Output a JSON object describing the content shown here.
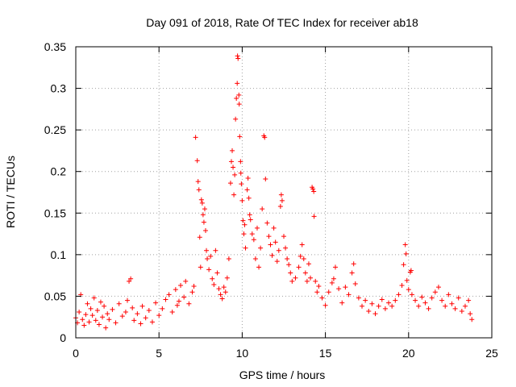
{
  "chart_data": {
    "type": "scatter",
    "title": "Day 091 of 2018, Rate Of TEC Index for receiver ab18",
    "xlabel": "GPS time / hours",
    "ylabel": "ROTI / TECUs",
    "xlim": [
      0,
      25
    ],
    "ylim": [
      0,
      0.35
    ],
    "x_ticks": [
      0,
      5,
      10,
      15,
      20,
      25
    ],
    "x_tick_labels": [
      "0",
      "5",
      "10",
      "15",
      "20",
      "25"
    ],
    "y_ticks": [
      0,
      0.05,
      0.1,
      0.15,
      0.2,
      0.25,
      0.3,
      0.35
    ],
    "y_tick_labels": [
      "0",
      "0.05",
      "0.1",
      "0.15",
      "0.2",
      "0.25",
      "0.3",
      "0.35"
    ],
    "grid": true,
    "marker": "+",
    "color": "#ff0000",
    "series": [
      {
        "name": "ROTI",
        "points": [
          [
            0.0,
            0.024
          ],
          [
            0.1,
            0.018
          ],
          [
            0.2,
            0.031
          ],
          [
            0.3,
            0.052
          ],
          [
            0.4,
            0.022
          ],
          [
            0.5,
            0.015
          ],
          [
            0.6,
            0.028
          ],
          [
            0.7,
            0.041
          ],
          [
            0.8,
            0.019
          ],
          [
            0.9,
            0.035
          ],
          [
            1.0,
            0.027
          ],
          [
            1.1,
            0.048
          ],
          [
            1.2,
            0.021
          ],
          [
            1.3,
            0.033
          ],
          [
            1.4,
            0.016
          ],
          [
            1.5,
            0.043
          ],
          [
            1.6,
            0.025
          ],
          [
            1.7,
            0.038
          ],
          [
            1.8,
            0.012
          ],
          [
            1.9,
            0.029
          ],
          [
            2.0,
            0.022
          ],
          [
            2.2,
            0.034
          ],
          [
            2.4,
            0.018
          ],
          [
            2.6,
            0.041
          ],
          [
            2.8,
            0.026
          ],
          [
            3.0,
            0.031
          ],
          [
            3.1,
            0.045
          ],
          [
            3.2,
            0.068
          ],
          [
            3.3,
            0.071
          ],
          [
            3.4,
            0.036
          ],
          [
            3.5,
            0.021
          ],
          [
            3.7,
            0.029
          ],
          [
            3.9,
            0.017
          ],
          [
            4.0,
            0.038
          ],
          [
            4.2,
            0.024
          ],
          [
            4.4,
            0.033
          ],
          [
            4.6,
            0.019
          ],
          [
            4.8,
            0.042
          ],
          [
            5.0,
            0.027
          ],
          [
            5.2,
            0.035
          ],
          [
            5.4,
            0.046
          ],
          [
            5.6,
            0.052
          ],
          [
            5.8,
            0.031
          ],
          [
            6.0,
            0.058
          ],
          [
            6.1,
            0.039
          ],
          [
            6.2,
            0.044
          ],
          [
            6.3,
            0.063
          ],
          [
            6.5,
            0.049
          ],
          [
            6.6,
            0.068
          ],
          [
            6.8,
            0.041
          ],
          [
            7.0,
            0.055
          ],
          [
            7.1,
            0.062
          ],
          [
            7.2,
            0.241
          ],
          [
            7.3,
            0.213
          ],
          [
            7.35,
            0.188
          ],
          [
            7.4,
            0.178
          ],
          [
            7.45,
            0.121
          ],
          [
            7.5,
            0.085
          ],
          [
            7.55,
            0.166
          ],
          [
            7.6,
            0.162
          ],
          [
            7.65,
            0.148
          ],
          [
            7.7,
            0.139
          ],
          [
            7.75,
            0.155
          ],
          [
            7.8,
            0.129
          ],
          [
            7.85,
            0.105
          ],
          [
            7.9,
            0.095
          ],
          [
            8.0,
            0.082
          ],
          [
            8.1,
            0.098
          ],
          [
            8.2,
            0.071
          ],
          [
            8.3,
            0.064
          ],
          [
            8.4,
            0.105
          ],
          [
            8.5,
            0.078
          ],
          [
            8.6,
            0.059
          ],
          [
            8.7,
            0.052
          ],
          [
            8.8,
            0.047
          ],
          [
            8.9,
            0.061
          ],
          [
            9.0,
            0.055
          ],
          [
            9.1,
            0.072
          ],
          [
            9.2,
            0.095
          ],
          [
            9.3,
            0.186
          ],
          [
            9.35,
            0.212
          ],
          [
            9.4,
            0.225
          ],
          [
            9.45,
            0.205
          ],
          [
            9.5,
            0.172
          ],
          [
            9.55,
            0.196
          ],
          [
            9.6,
            0.263
          ],
          [
            9.65,
            0.288
          ],
          [
            9.7,
            0.306
          ],
          [
            9.72,
            0.339
          ],
          [
            9.75,
            0.336
          ],
          [
            9.8,
            0.292
          ],
          [
            9.82,
            0.281
          ],
          [
            9.85,
            0.242
          ],
          [
            9.9,
            0.212
          ],
          [
            9.92,
            0.198
          ],
          [
            9.95,
            0.185
          ],
          [
            10.0,
            0.165
          ],
          [
            10.05,
            0.141
          ],
          [
            10.1,
            0.125
          ],
          [
            10.15,
            0.136
          ],
          [
            10.2,
            0.108
          ],
          [
            10.3,
            0.178
          ],
          [
            10.35,
            0.192
          ],
          [
            10.4,
            0.168
          ],
          [
            10.45,
            0.148
          ],
          [
            10.5,
            0.142
          ],
          [
            10.6,
            0.125
          ],
          [
            10.7,
            0.118
          ],
          [
            10.8,
            0.095
          ],
          [
            10.9,
            0.132
          ],
          [
            11.0,
            0.085
          ],
          [
            11.1,
            0.108
          ],
          [
            11.2,
            0.155
          ],
          [
            11.3,
            0.243
          ],
          [
            11.35,
            0.241
          ],
          [
            11.4,
            0.191
          ],
          [
            11.5,
            0.138
          ],
          [
            11.6,
            0.122
          ],
          [
            11.7,
            0.112
          ],
          [
            11.8,
            0.099
          ],
          [
            11.9,
            0.132
          ],
          [
            12.0,
            0.115
          ],
          [
            12.1,
            0.092
          ],
          [
            12.2,
            0.105
          ],
          [
            12.3,
            0.158
          ],
          [
            12.35,
            0.172
          ],
          [
            12.4,
            0.165
          ],
          [
            12.5,
            0.122
          ],
          [
            12.6,
            0.108
          ],
          [
            12.7,
            0.095
          ],
          [
            12.8,
            0.088
          ],
          [
            12.9,
            0.078
          ],
          [
            13.0,
            0.068
          ],
          [
            13.2,
            0.072
          ],
          [
            13.4,
            0.085
          ],
          [
            13.5,
            0.098
          ],
          [
            13.6,
            0.112
          ],
          [
            13.7,
            0.095
          ],
          [
            13.8,
            0.078
          ],
          [
            13.9,
            0.068
          ],
          [
            14.0,
            0.089
          ],
          [
            14.1,
            0.072
          ],
          [
            14.2,
            0.181
          ],
          [
            14.25,
            0.179
          ],
          [
            14.3,
            0.176
          ],
          [
            14.32,
            0.146
          ],
          [
            14.4,
            0.068
          ],
          [
            14.5,
            0.055
          ],
          [
            14.6,
            0.062
          ],
          [
            14.8,
            0.048
          ],
          [
            15.0,
            0.039
          ],
          [
            15.2,
            0.055
          ],
          [
            15.4,
            0.066
          ],
          [
            15.5,
            0.071
          ],
          [
            15.6,
            0.085
          ],
          [
            15.8,
            0.059
          ],
          [
            16.0,
            0.042
          ],
          [
            16.2,
            0.061
          ],
          [
            16.4,
            0.052
          ],
          [
            16.6,
            0.078
          ],
          [
            16.7,
            0.089
          ],
          [
            16.8,
            0.065
          ],
          [
            17.0,
            0.048
          ],
          [
            17.2,
            0.038
          ],
          [
            17.4,
            0.045
          ],
          [
            17.6,
            0.032
          ],
          [
            17.8,
            0.041
          ],
          [
            18.0,
            0.029
          ],
          [
            18.2,
            0.038
          ],
          [
            18.4,
            0.046
          ],
          [
            18.6,
            0.035
          ],
          [
            18.8,
            0.042
          ],
          [
            19.0,
            0.038
          ],
          [
            19.2,
            0.045
          ],
          [
            19.4,
            0.052
          ],
          [
            19.6,
            0.063
          ],
          [
            19.7,
            0.088
          ],
          [
            19.8,
            0.112
          ],
          [
            19.85,
            0.101
          ],
          [
            19.9,
            0.069
          ],
          [
            20.0,
            0.058
          ],
          [
            20.1,
            0.079
          ],
          [
            20.15,
            0.081
          ],
          [
            20.2,
            0.052
          ],
          [
            20.4,
            0.045
          ],
          [
            20.6,
            0.038
          ],
          [
            20.8,
            0.049
          ],
          [
            21.0,
            0.042
          ],
          [
            21.2,
            0.035
          ],
          [
            21.4,
            0.048
          ],
          [
            21.6,
            0.055
          ],
          [
            21.8,
            0.061
          ],
          [
            22.0,
            0.045
          ],
          [
            22.2,
            0.038
          ],
          [
            22.4,
            0.052
          ],
          [
            22.6,
            0.041
          ],
          [
            22.8,
            0.035
          ],
          [
            23.0,
            0.048
          ],
          [
            23.2,
            0.032
          ],
          [
            23.4,
            0.038
          ],
          [
            23.6,
            0.045
          ],
          [
            23.7,
            0.029
          ],
          [
            23.8,
            0.022
          ]
        ]
      }
    ]
  }
}
